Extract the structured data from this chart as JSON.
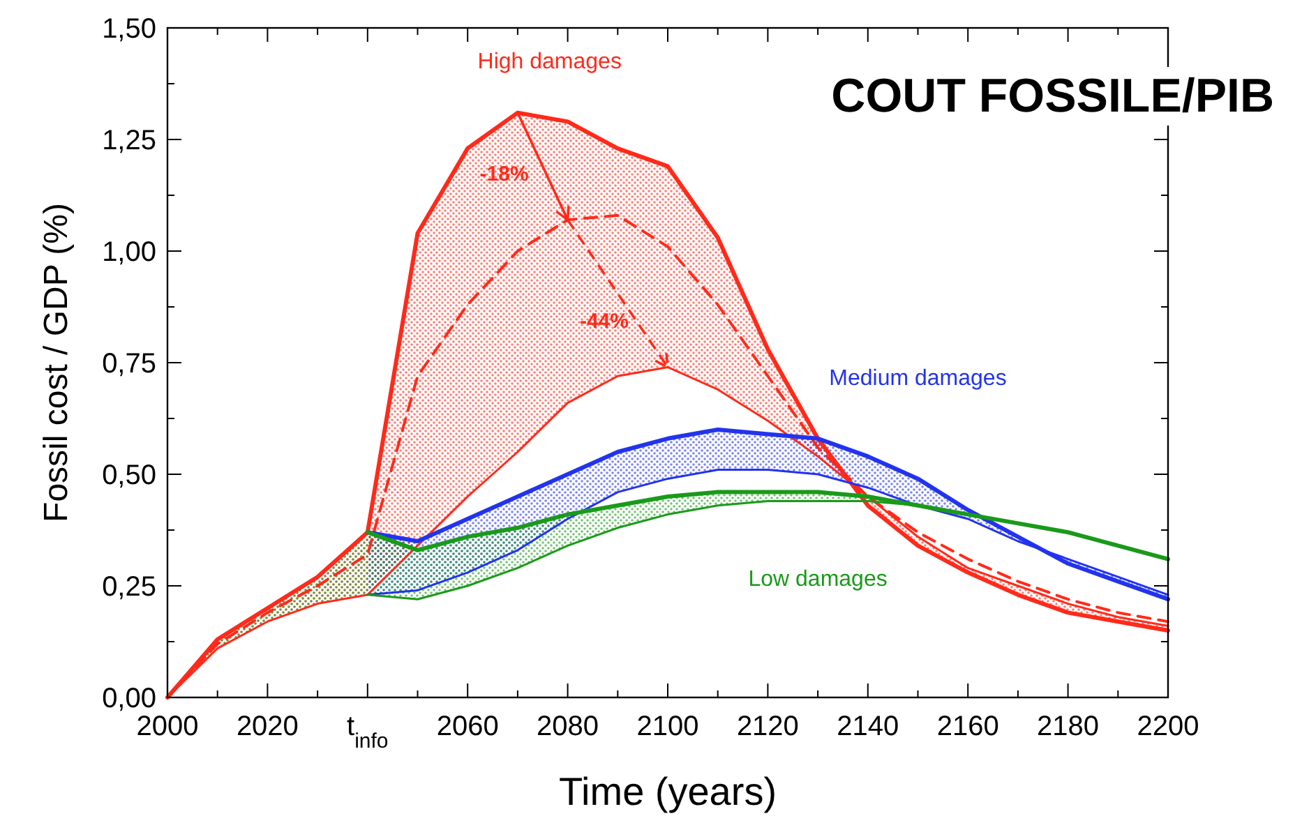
{
  "chart_data": {
    "type": "line",
    "title": "COUT FOSSILE/PIB",
    "xlabel": "Time (years)",
    "ylabel": "Fossil cost / GDP (%)",
    "x": [
      2000,
      2010,
      2020,
      2030,
      2040,
      2050,
      2060,
      2070,
      2080,
      2090,
      2100,
      2110,
      2120,
      2130,
      2140,
      2150,
      2160,
      2170,
      2180,
      2190,
      2200
    ],
    "xlim": [
      2000,
      2200
    ],
    "xticks": [
      2000,
      {
        "value": 2010,
        "label": null
      },
      2020,
      {
        "value": 2030,
        "label": null
      },
      {
        "value": 2040,
        "label": "t$_{info}$"
      },
      {
        "value": 2050,
        "label": null
      },
      2060,
      {
        "value": 2070,
        "label": null
      },
      2080,
      {
        "value": 2090,
        "label": null
      },
      2100,
      {
        "value": 2110,
        "label": null
      },
      2120,
      {
        "value": 2130,
        "label": null
      },
      2140,
      {
        "value": 2150,
        "label": null
      },
      2160,
      {
        "value": 2170,
        "label": null
      },
      2180,
      {
        "value": 2190,
        "label": null
      },
      2200
    ],
    "ylim": [
      0,
      1.5
    ],
    "yticks": [
      {
        "value": 0,
        "label": "0,00"
      },
      {
        "value": 0.125,
        "label": null
      },
      {
        "value": 0.25,
        "label": "0,25"
      },
      {
        "value": 0.375,
        "label": null
      },
      {
        "value": 0.5,
        "label": "0,50"
      },
      {
        "value": 0.625,
        "label": null
      },
      {
        "value": 0.75,
        "label": "0,75"
      },
      {
        "value": 0.875,
        "label": null
      },
      {
        "value": 1,
        "label": "1,00"
      },
      {
        "value": 1.125,
        "label": null
      },
      {
        "value": 1.25,
        "label": "1,25"
      },
      {
        "value": 1.375,
        "label": null
      },
      {
        "value": 1.5,
        "label": "1,50"
      }
    ],
    "grid": false,
    "marker": "none",
    "series": [
      {
        "name": "High damages",
        "color": "#ff2a1a",
        "line_style": "solid",
        "values": [
          0,
          0.13,
          0.2,
          0.27,
          0.37,
          1.04,
          1.23,
          1.31,
          1.29,
          1.23,
          1.19,
          1.03,
          0.78,
          0.58,
          0.43,
          0.34,
          0.28,
          0.23,
          0.19,
          0.17,
          0.15
        ]
      },
      {
        "color": "#ff2a1a",
        "line_style": "solid",
        "values": [
          0,
          0.11,
          0.17,
          0.21,
          0.23,
          0.34,
          0.45,
          0.55,
          0.66,
          0.72,
          0.74,
          0.69,
          0.62,
          0.54,
          0.45,
          0.36,
          0.29,
          0.25,
          0.21,
          0.18,
          0.16
        ]
      },
      {
        "color": "#ff2a1a",
        "line_style": "dashed",
        "values": [
          0,
          0.12,
          0.19,
          0.25,
          0.32,
          0.72,
          0.88,
          1.0,
          1.07,
          1.08,
          1.01,
          0.88,
          0.72,
          0.56,
          0.45,
          0.37,
          0.31,
          0.26,
          0.22,
          0.19,
          0.17
        ],
        "lower": [
          0,
          0.11,
          0.17,
          0.21,
          0.23,
          0.34,
          0.45,
          0.55,
          0.66,
          0.72,
          0.74,
          0.69,
          0.62,
          0.54,
          0.45,
          0.36,
          0.29,
          0.25,
          0.21,
          0.18,
          0.16
        ],
        "upper": [
          0,
          0.13,
          0.2,
          0.27,
          0.37,
          1.04,
          1.23,
          1.31,
          1.29,
          1.23,
          1.19,
          1.03,
          0.78,
          0.58,
          0.43,
          0.34,
          0.28,
          0.23,
          0.19,
          0.17,
          0.15
        ]
      },
      {
        "name": "Medium damages",
        "color": "#2233ee",
        "line_style": "solid",
        "values": [
          null,
          null,
          null,
          null,
          0.37,
          0.35,
          0.4,
          0.45,
          0.5,
          0.55,
          0.58,
          0.6,
          0.59,
          0.58,
          0.54,
          0.49,
          0.42,
          0.36,
          0.3,
          0.26,
          0.22
        ],
        "lower": [
          null,
          null,
          null,
          null,
          0.23,
          0.24,
          0.28,
          0.33,
          0.4,
          0.46,
          0.49,
          0.51,
          0.51,
          0.5,
          0.47,
          0.43,
          0.4,
          0.35,
          0.31,
          0.27,
          0.23
        ],
        "upper": [
          null,
          null,
          null,
          null,
          0.37,
          0.35,
          0.4,
          0.45,
          0.5,
          0.55,
          0.58,
          0.6,
          0.59,
          0.58,
          0.54,
          0.49,
          0.42,
          0.36,
          0.3,
          0.26,
          0.22
        ]
      },
      {
        "color": "#2233ee",
        "line_style": "solid",
        "values": [
          null,
          null,
          null,
          null,
          0.23,
          0.24,
          0.28,
          0.33,
          0.4,
          0.46,
          0.49,
          0.51,
          0.51,
          0.5,
          0.47,
          0.43,
          0.4,
          0.35,
          0.31,
          0.27,
          0.23
        ]
      },
      {
        "name": "Low damages",
        "color": "#1a9a1a",
        "line_style": "solid",
        "values": [
          null,
          null,
          null,
          null,
          0.37,
          0.33,
          0.36,
          0.38,
          0.41,
          0.43,
          0.45,
          0.46,
          0.46,
          0.46,
          0.45,
          0.43,
          0.41,
          0.39,
          0.37,
          0.34,
          0.31
        ],
        "lower": [
          0,
          0.11,
          0.17,
          0.21,
          0.23,
          0.22,
          0.25,
          0.29,
          0.34,
          0.38,
          0.41,
          0.43,
          0.44,
          0.44,
          0.44,
          0.43,
          0.41,
          0.39,
          0.37,
          0.34,
          0.31
        ],
        "upper": [
          0,
          0.13,
          0.2,
          0.27,
          0.37,
          0.33,
          0.36,
          0.38,
          0.41,
          0.43,
          0.45,
          0.46,
          0.46,
          0.46,
          0.45,
          0.43,
          0.41,
          0.39,
          0.37,
          0.34,
          0.31
        ]
      },
      {
        "color": "#1a9a1a",
        "line_style": "solid",
        "values": [
          null,
          null,
          null,
          null,
          0.23,
          0.22,
          0.25,
          0.29,
          0.34,
          0.38,
          0.41,
          0.43,
          0.44,
          0.44,
          0.44,
          0.43,
          0.41,
          0.39,
          0.37,
          0.34,
          0.31
        ]
      }
    ],
    "annotations": [
      {
        "text": "-18%",
        "x": 2080,
        "y": 1.07
      },
      {
        "text": "-44%",
        "x": 2100,
        "y": 0.74
      }
    ]
  }
}
